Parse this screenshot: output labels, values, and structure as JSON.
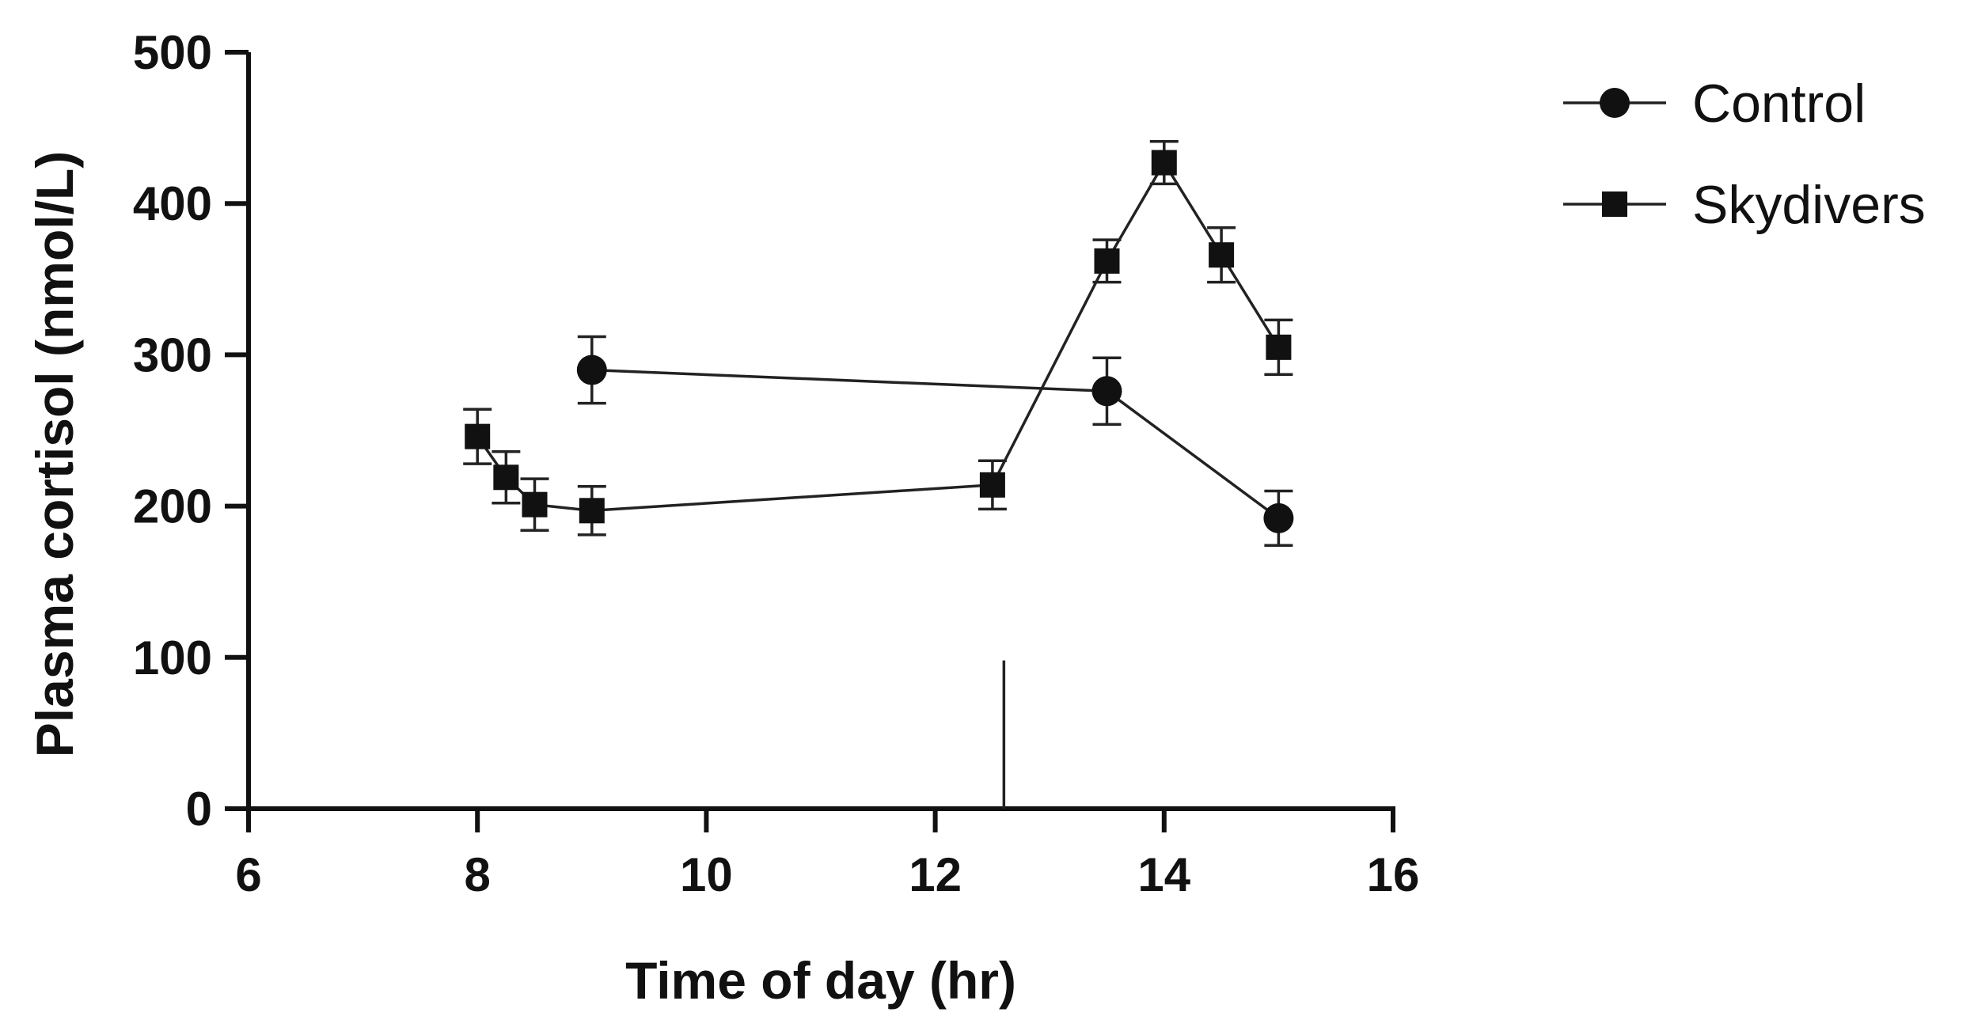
{
  "chart_data": {
    "type": "line",
    "xlabel": "Time of day (hr)",
    "ylabel": "Plasma cortisol (nmol/L)",
    "xlim": [
      6,
      16
    ],
    "ylim": [
      0,
      500
    ],
    "xticks": [
      6,
      8,
      10,
      12,
      14,
      16
    ],
    "yticks": [
      0,
      100,
      200,
      300,
      400,
      500
    ],
    "x_tick_labels": [
      "6",
      "8",
      "10",
      "12",
      "14",
      "16"
    ],
    "y_tick_labels": [
      "0",
      "100",
      "200",
      "300",
      "400",
      "500"
    ],
    "legend_position": "top-right",
    "series": [
      {
        "name": "Control",
        "marker": "circle",
        "x": [
          9,
          13.5,
          15
        ],
        "y": [
          290,
          276,
          192
        ],
        "error": [
          22,
          22,
          18
        ]
      },
      {
        "name": "Skydivers",
        "marker": "square",
        "x": [
          8,
          8.25,
          8.5,
          9,
          12.5,
          13.5,
          14,
          14.5,
          15
        ],
        "y": [
          246,
          219,
          201,
          197,
          214,
          362,
          427,
          366,
          305
        ],
        "error": [
          18,
          17,
          17,
          16,
          16,
          14,
          14,
          18,
          18
        ]
      }
    ],
    "annotations": [
      {
        "type": "vertical-line",
        "x": 12.6,
        "y_from": 0,
        "y_to": 98
      }
    ]
  }
}
